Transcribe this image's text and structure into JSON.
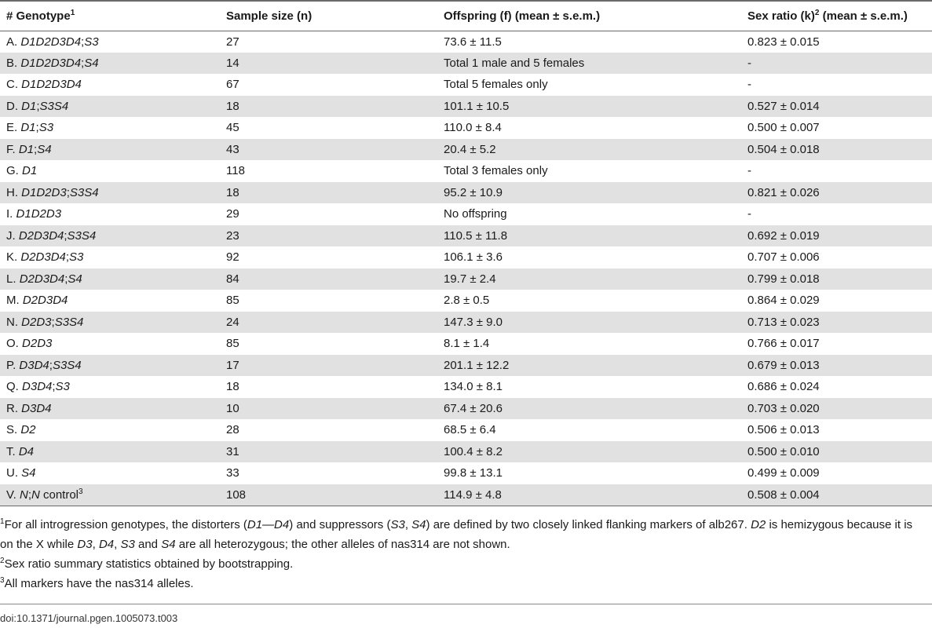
{
  "table": {
    "headers": {
      "genotype": "# Genotype",
      "genotype_sup": "1",
      "sample": "Sample size (n)",
      "offspring": "Offspring (f) (mean ± s.e.m.)",
      "sex_ratio": "Sex ratio (k)",
      "sex_ratio_sup": "2",
      "sex_ratio_tail": " (mean ± s.e.m.)"
    },
    "rows": [
      {
        "prefix": "A. ",
        "name": "D1D2D3D4",
        "sep": ";",
        "supp": "S3",
        "n": "27",
        "f": "73.6 ± 11.5",
        "k": "0.823 ± 0.015"
      },
      {
        "prefix": "B. ",
        "name": "D1D2D3D4",
        "sep": ";",
        "supp": "S4",
        "n": "14",
        "f": "Total 1 male and 5 females",
        "k": "-"
      },
      {
        "prefix": "C. ",
        "name": "D1D2D3D4",
        "sep": "",
        "supp": "",
        "n": "67",
        "f": "Total 5 females only",
        "k": "-"
      },
      {
        "prefix": "D. ",
        "name": "D1",
        "sep": ";",
        "supp": "S3S4",
        "n": "18",
        "f": "101.1 ± 10.5",
        "k": "0.527 ± 0.014"
      },
      {
        "prefix": "E. ",
        "name": "D1",
        "sep": ";",
        "supp": "S3",
        "n": "45",
        "f": "110.0 ± 8.4",
        "k": "0.500 ± 0.007"
      },
      {
        "prefix": "F. ",
        "name": "D1",
        "sep": ";",
        "supp": "S4",
        "n": "43",
        "f": "20.4 ± 5.2",
        "k": "0.504 ± 0.018"
      },
      {
        "prefix": "G. ",
        "name": "D1",
        "sep": "",
        "supp": "",
        "n": "118",
        "f": "Total 3 females only",
        "k": "-"
      },
      {
        "prefix": "H. ",
        "name": "D1D2D3",
        "sep": ";",
        "supp": "S3S4",
        "n": "18",
        "f": "95.2 ± 10.9",
        "k": "0.821 ± 0.026"
      },
      {
        "prefix": "I. ",
        "name": "D1D2D3",
        "sep": "",
        "supp": "",
        "n": "29",
        "f": "No offspring",
        "k": "-"
      },
      {
        "prefix": "J. ",
        "name": "D2D3D4",
        "sep": ";",
        "supp": "S3S4",
        "n": "23",
        "f": "110.5 ± 11.8",
        "k": "0.692 ± 0.019"
      },
      {
        "prefix": "K. ",
        "name": "D2D3D4",
        "sep": ";",
        "supp": "S3",
        "n": "92",
        "f": "106.1 ± 3.6",
        "k": "0.707 ± 0.006"
      },
      {
        "prefix": "L. ",
        "name": "D2D3D4",
        "sep": ";",
        "supp": "S4",
        "n": "84",
        "f": "19.7 ± 2.4",
        "k": "0.799 ± 0.018"
      },
      {
        "prefix": "M. ",
        "name": "D2D3D4",
        "sep": "",
        "supp": "",
        "n": "85",
        "f": "2.8 ± 0.5",
        "k": "0.864 ± 0.029"
      },
      {
        "prefix": "N. ",
        "name": "D2D3",
        "sep": ";",
        "supp": "S3S4",
        "n": "24",
        "f": "147.3 ± 9.0",
        "k": "0.713 ± 0.023"
      },
      {
        "prefix": "O. ",
        "name": "D2D3",
        "sep": "",
        "supp": "",
        "n": "85",
        "f": "8.1 ± 1.4",
        "k": "0.766 ± 0.017"
      },
      {
        "prefix": "P. ",
        "name": "D3D4",
        "sep": ";",
        "supp": "S3S4",
        "n": "17",
        "f": "201.1 ± 12.2",
        "k": "0.679 ± 0.013"
      },
      {
        "prefix": "Q. ",
        "name": "D3D4",
        "sep": ";",
        "supp": "S3",
        "n": "18",
        "f": "134.0 ± 8.1",
        "k": "0.686 ± 0.024"
      },
      {
        "prefix": "R. ",
        "name": "D3D4",
        "sep": "",
        "supp": "",
        "n": "10",
        "f": "67.4 ± 20.6",
        "k": "0.703 ± 0.020"
      },
      {
        "prefix": "S. ",
        "name": "D2",
        "sep": "",
        "supp": "",
        "n": "28",
        "f": "68.5 ± 6.4",
        "k": "0.506 ± 0.013"
      },
      {
        "prefix": "T. ",
        "name": "D4",
        "sep": "",
        "supp": "",
        "n": "31",
        "f": "100.4 ± 8.2",
        "k": "0.500 ± 0.010"
      },
      {
        "prefix": "U. ",
        "name": "S4",
        "sep": "",
        "supp": "",
        "n": "33",
        "f": "99.8 ± 13.1",
        "k": "0.499 ± 0.009"
      },
      {
        "prefix": "V. ",
        "name": "N",
        "sep": ";",
        "supp": "N",
        "tail": " control",
        "tail_sup": "3",
        "n": "108",
        "f": "114.9 ± 4.8",
        "k": "0.508 ± 0.004"
      }
    ]
  },
  "footnotes": {
    "fn1": {
      "sup": "1",
      "t1": "For all introgression genotypes, the distorters (",
      "i1": "D1—D4",
      "t2": ") and suppressors (",
      "i2": "S3",
      "t3": ", ",
      "i3": "S4",
      "t4": ") are defined by two closely linked flanking markers of alb267. ",
      "i4": "D2",
      "t5": " is hemizygous because it is on the X while ",
      "i5": "D3",
      "t6": ", ",
      "i6": "D4",
      "t7": ", ",
      "i7": "S3",
      "t8": " and ",
      "i8": "S4",
      "t9": " are all heterozygous; the other alleles of nas314 are not shown."
    },
    "fn2": {
      "sup": "2",
      "text": "Sex ratio summary statistics obtained by bootstrapping."
    },
    "fn3": {
      "sup": "3",
      "text": "All markers have the nas314 alleles."
    }
  },
  "doi": "doi:10.1371/journal.pgen.1005073.t003"
}
